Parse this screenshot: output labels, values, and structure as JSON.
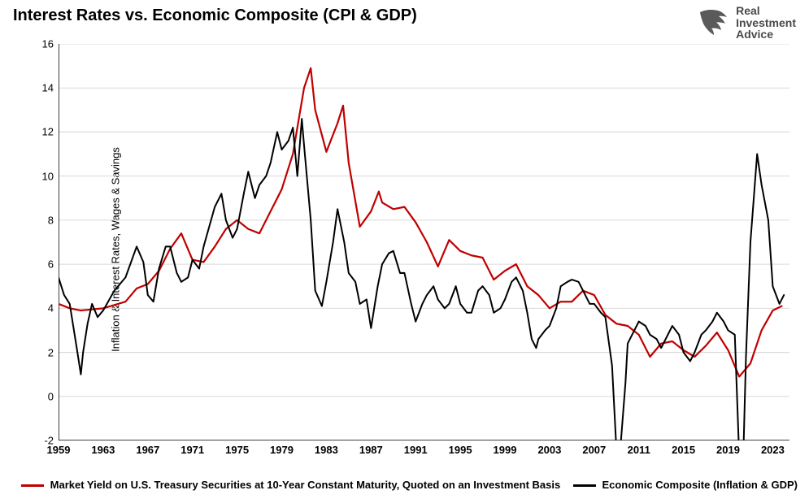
{
  "title": "Interest Rates vs. Economic Composite (CPI & GDP)",
  "logo": {
    "word1": "Real",
    "word2": "Investment",
    "word3": "Advice"
  },
  "chart": {
    "type": "line",
    "ylabel": "Inflation & Interest Rates, Wages & Savings",
    "ylim": [
      -2,
      16
    ],
    "ytick_step": 2,
    "yticks": [
      -2,
      0,
      2,
      4,
      6,
      8,
      10,
      12,
      14,
      16
    ],
    "xlim": [
      1959,
      2024.5
    ],
    "xticks": [
      1959,
      1963,
      1967,
      1971,
      1975,
      1979,
      1983,
      1987,
      1991,
      1995,
      1999,
      2003,
      2007,
      2011,
      2015,
      2019,
      2023
    ],
    "background_color": "#ffffff",
    "grid_color": "#d9d9d9",
    "axis_color": "#000000",
    "tick_fontsize": 13,
    "title_fontsize": 20,
    "label_fontsize": 13,
    "series": [
      {
        "name": "market_yield",
        "label": "Market Yield on U.S. Treasury Securities at 10-Year Constant Maturity, Quoted on an Investment Basis",
        "color": "#c00000",
        "line_width": 2.2,
        "data": [
          [
            1959,
            4.2
          ],
          [
            1960,
            4.0
          ],
          [
            1961,
            3.9
          ],
          [
            1962,
            3.95
          ],
          [
            1963,
            4.0
          ],
          [
            1964,
            4.15
          ],
          [
            1965,
            4.3
          ],
          [
            1966,
            4.9
          ],
          [
            1967,
            5.1
          ],
          [
            1968,
            5.7
          ],
          [
            1969,
            6.7
          ],
          [
            1970,
            7.4
          ],
          [
            1971,
            6.2
          ],
          [
            1972,
            6.1
          ],
          [
            1973,
            6.8
          ],
          [
            1974,
            7.6
          ],
          [
            1975,
            8.0
          ],
          [
            1976,
            7.6
          ],
          [
            1977,
            7.4
          ],
          [
            1978,
            8.4
          ],
          [
            1979,
            9.4
          ],
          [
            1980,
            11.0
          ],
          [
            1981,
            14.0
          ],
          [
            1981.6,
            14.9
          ],
          [
            1982,
            13.0
          ],
          [
            1983,
            11.1
          ],
          [
            1984,
            12.4
          ],
          [
            1984.5,
            13.2
          ],
          [
            1985,
            10.6
          ],
          [
            1986,
            7.7
          ],
          [
            1987,
            8.4
          ],
          [
            1987.7,
            9.3
          ],
          [
            1988,
            8.8
          ],
          [
            1989,
            8.5
          ],
          [
            1990,
            8.6
          ],
          [
            1991,
            7.9
          ],
          [
            1992,
            7.0
          ],
          [
            1993,
            5.9
          ],
          [
            1994,
            7.1
          ],
          [
            1995,
            6.6
          ],
          [
            1996,
            6.4
          ],
          [
            1997,
            6.3
          ],
          [
            1998,
            5.3
          ],
          [
            1999,
            5.7
          ],
          [
            2000,
            6.0
          ],
          [
            2001,
            5.0
          ],
          [
            2002,
            4.6
          ],
          [
            2003,
            4.0
          ],
          [
            2004,
            4.3
          ],
          [
            2005,
            4.3
          ],
          [
            2006,
            4.8
          ],
          [
            2007,
            4.6
          ],
          [
            2008,
            3.7
          ],
          [
            2009,
            3.3
          ],
          [
            2010,
            3.2
          ],
          [
            2011,
            2.8
          ],
          [
            2012,
            1.8
          ],
          [
            2013,
            2.4
          ],
          [
            2014,
            2.5
          ],
          [
            2015,
            2.1
          ],
          [
            2016,
            1.8
          ],
          [
            2017,
            2.3
          ],
          [
            2018,
            2.9
          ],
          [
            2019,
            2.1
          ],
          [
            2020,
            0.9
          ],
          [
            2021,
            1.5
          ],
          [
            2022,
            3.0
          ],
          [
            2023,
            3.9
          ],
          [
            2023.8,
            4.1
          ]
        ]
      },
      {
        "name": "economic_composite",
        "label": "Economic Composite (Inflation & GDP)",
        "color": "#000000",
        "line_width": 2.0,
        "data": [
          [
            1959,
            5.4
          ],
          [
            1959.5,
            4.6
          ],
          [
            1960,
            4.2
          ],
          [
            1960.6,
            2.3
          ],
          [
            1961,
            1.0
          ],
          [
            1961.2,
            2.0
          ],
          [
            1961.6,
            3.3
          ],
          [
            1962,
            4.2
          ],
          [
            1962.5,
            3.6
          ],
          [
            1963,
            3.9
          ],
          [
            1964,
            4.8
          ],
          [
            1965,
            5.4
          ],
          [
            1966,
            6.8
          ],
          [
            1966.6,
            6.1
          ],
          [
            1967,
            4.6
          ],
          [
            1967.5,
            4.3
          ],
          [
            1968,
            5.8
          ],
          [
            1968.6,
            6.8
          ],
          [
            1969,
            6.8
          ],
          [
            1969.6,
            5.6
          ],
          [
            1970,
            5.2
          ],
          [
            1970.6,
            5.4
          ],
          [
            1971,
            6.2
          ],
          [
            1971.6,
            5.8
          ],
          [
            1972,
            6.8
          ],
          [
            1973,
            8.6
          ],
          [
            1973.6,
            9.2
          ],
          [
            1974,
            8.0
          ],
          [
            1974.6,
            7.2
          ],
          [
            1975,
            7.6
          ],
          [
            1975.6,
            9.2
          ],
          [
            1976,
            10.2
          ],
          [
            1976.6,
            9.0
          ],
          [
            1977,
            9.6
          ],
          [
            1977.6,
            10.0
          ],
          [
            1978,
            10.6
          ],
          [
            1978.6,
            12.0
          ],
          [
            1979,
            11.2
          ],
          [
            1979.6,
            11.6
          ],
          [
            1980,
            12.2
          ],
          [
            1980.4,
            10.0
          ],
          [
            1980.8,
            12.6
          ],
          [
            1981,
            11.4
          ],
          [
            1981.6,
            8.0
          ],
          [
            1982,
            4.8
          ],
          [
            1982.6,
            4.1
          ],
          [
            1983,
            5.2
          ],
          [
            1983.6,
            7.0
          ],
          [
            1984,
            8.5
          ],
          [
            1984.6,
            7.0
          ],
          [
            1985,
            5.6
          ],
          [
            1985.6,
            5.2
          ],
          [
            1986,
            4.2
          ],
          [
            1986.6,
            4.4
          ],
          [
            1987,
            3.1
          ],
          [
            1987.6,
            5.0
          ],
          [
            1988,
            6.0
          ],
          [
            1988.6,
            6.5
          ],
          [
            1989,
            6.6
          ],
          [
            1989.6,
            5.6
          ],
          [
            1990,
            5.6
          ],
          [
            1990.6,
            4.2
          ],
          [
            1991,
            3.4
          ],
          [
            1991.6,
            4.2
          ],
          [
            1992,
            4.6
          ],
          [
            1992.6,
            5.0
          ],
          [
            1993,
            4.4
          ],
          [
            1993.6,
            4.0
          ],
          [
            1994,
            4.2
          ],
          [
            1994.6,
            5.0
          ],
          [
            1995,
            4.2
          ],
          [
            1995.6,
            3.8
          ],
          [
            1996,
            3.8
          ],
          [
            1996.6,
            4.8
          ],
          [
            1997,
            5.0
          ],
          [
            1997.6,
            4.6
          ],
          [
            1998,
            3.8
          ],
          [
            1998.6,
            4.0
          ],
          [
            1999,
            4.4
          ],
          [
            1999.6,
            5.2
          ],
          [
            2000,
            5.4
          ],
          [
            2000.6,
            4.8
          ],
          [
            2001,
            3.8
          ],
          [
            2001.4,
            2.6
          ],
          [
            2001.8,
            2.2
          ],
          [
            2002,
            2.6
          ],
          [
            2002.6,
            3.0
          ],
          [
            2003,
            3.2
          ],
          [
            2003.6,
            4.0
          ],
          [
            2004,
            5.0
          ],
          [
            2004.6,
            5.2
          ],
          [
            2005,
            5.3
          ],
          [
            2005.6,
            5.2
          ],
          [
            2006,
            4.8
          ],
          [
            2006.6,
            4.2
          ],
          [
            2007,
            4.2
          ],
          [
            2007.6,
            3.8
          ],
          [
            2008,
            3.6
          ],
          [
            2008.6,
            1.4
          ],
          [
            2009,
            -2.5
          ],
          [
            2009.4,
            -2.0
          ],
          [
            2009.8,
            0.6
          ],
          [
            2010,
            2.4
          ],
          [
            2010.6,
            3.0
          ],
          [
            2011,
            3.4
          ],
          [
            2011.6,
            3.2
          ],
          [
            2012,
            2.8
          ],
          [
            2012.6,
            2.6
          ],
          [
            2013,
            2.2
          ],
          [
            2013.6,
            2.8
          ],
          [
            2014,
            3.2
          ],
          [
            2014.6,
            2.8
          ],
          [
            2015,
            2.0
          ],
          [
            2015.6,
            1.6
          ],
          [
            2016,
            2.0
          ],
          [
            2016.6,
            2.8
          ],
          [
            2017,
            3.0
          ],
          [
            2017.6,
            3.4
          ],
          [
            2018,
            3.8
          ],
          [
            2018.6,
            3.4
          ],
          [
            2019,
            3.0
          ],
          [
            2019.6,
            2.8
          ],
          [
            2020,
            -2.8
          ],
          [
            2020.2,
            -4.0
          ],
          [
            2020.4,
            -2.0
          ],
          [
            2020.6,
            1.8
          ],
          [
            2021,
            7.0
          ],
          [
            2021.6,
            11.0
          ],
          [
            2022,
            9.6
          ],
          [
            2022.6,
            8.0
          ],
          [
            2023,
            5.0
          ],
          [
            2023.6,
            4.2
          ],
          [
            2024,
            4.6
          ]
        ]
      }
    ]
  },
  "legend": {
    "items": [
      {
        "series": "market_yield"
      },
      {
        "series": "economic_composite"
      }
    ],
    "fontsize": 13,
    "fontweight": "bold"
  }
}
